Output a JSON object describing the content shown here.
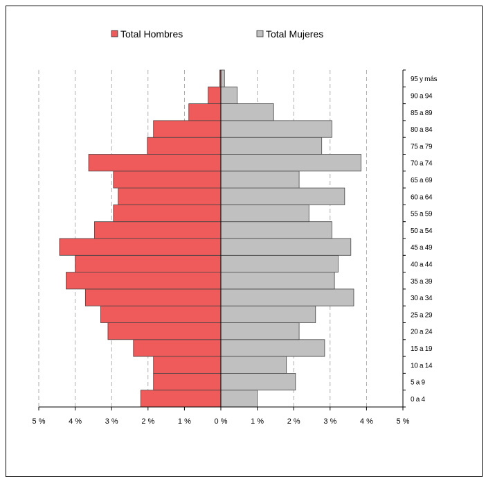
{
  "chart_data": {
    "type": "bar",
    "orientation": "horizontal",
    "layout": "population-pyramid",
    "categories": [
      "0 a 4",
      "5 a 9",
      "10 a 14",
      "15 a 19",
      "20 a 24",
      "25 a 29",
      "30 a 34",
      "35 a 39",
      "40 a 44",
      "45 a 49",
      "50 a 54",
      "55 a 59",
      "60 a 64",
      "65 a 69",
      "70 a 74",
      "75 a 79",
      "80 a 84",
      "85 a 89",
      "90 a 94",
      "95 y más"
    ],
    "series": [
      {
        "name": "Total Hombres",
        "color": "#ef5a5a",
        "side": "left",
        "values": [
          2.2,
          1.85,
          1.85,
          2.4,
          3.1,
          3.3,
          3.72,
          4.25,
          4.0,
          4.43,
          3.47,
          2.95,
          2.82,
          2.95,
          3.63,
          2.02,
          1.85,
          0.88,
          0.35,
          0.03
        ]
      },
      {
        "name": "Total Mujeres",
        "color": "#c0c0c0",
        "side": "right",
        "values": [
          1.0,
          2.05,
          1.8,
          2.85,
          2.15,
          2.6,
          3.65,
          3.12,
          3.22,
          3.57,
          3.05,
          2.42,
          3.4,
          2.15,
          3.85,
          2.77,
          3.05,
          1.45,
          0.45,
          0.1
        ]
      }
    ],
    "x_ticks": [
      "5 %",
      "4 %",
      "3 %",
      "2 %",
      "1 %",
      "0 %",
      "1 %",
      "2 %",
      "3 %",
      "4 %",
      "5 %"
    ],
    "xlim": [
      -5,
      5
    ],
    "grid": "vertical dashed",
    "legend_position": "top-center"
  }
}
